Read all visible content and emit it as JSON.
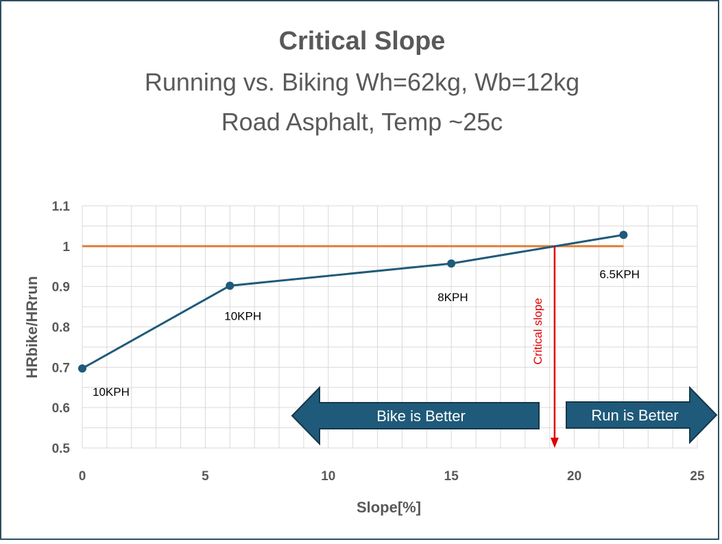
{
  "chart_data": {
    "type": "line",
    "title": "Critical Slope",
    "subtitle_lines": [
      "Running vs. Biking Wh=62kg, Wb=12kg",
      "Road Asphalt, Temp ~25c"
    ],
    "xlabel": "Slope[%]",
    "ylabel": "HRbike/HRrun",
    "xlim": [
      0,
      25
    ],
    "ylim": [
      0.5,
      1.1
    ],
    "x_ticks": [
      "0",
      "5",
      "10",
      "15",
      "20",
      "25"
    ],
    "y_ticks": [
      "0.5",
      "0.6",
      "0.7",
      "0.8",
      "0.9",
      "1",
      "1.1"
    ],
    "grid": true,
    "series": [
      {
        "color": "#1f5a7a",
        "x": [
          0,
          6,
          15,
          22
        ],
        "y": [
          0.697,
          0.902,
          0.957,
          1.028
        ],
        "point_labels": [
          "10KPH",
          "10KPH",
          "8KPH",
          "6.5KPH"
        ]
      }
    ],
    "reference_line": {
      "y": 1.0,
      "x_range": [
        0,
        22
      ],
      "color": "#e07b39"
    },
    "critical_slope": {
      "x": 19.2,
      "label": "Critical slope",
      "color": "#e00000"
    },
    "annotations": [
      {
        "text": "Bike is Better",
        "direction": "left",
        "color": "#1f5a7a"
      },
      {
        "text": "Run is Better",
        "direction": "right",
        "color": "#1f5a7a"
      }
    ]
  }
}
